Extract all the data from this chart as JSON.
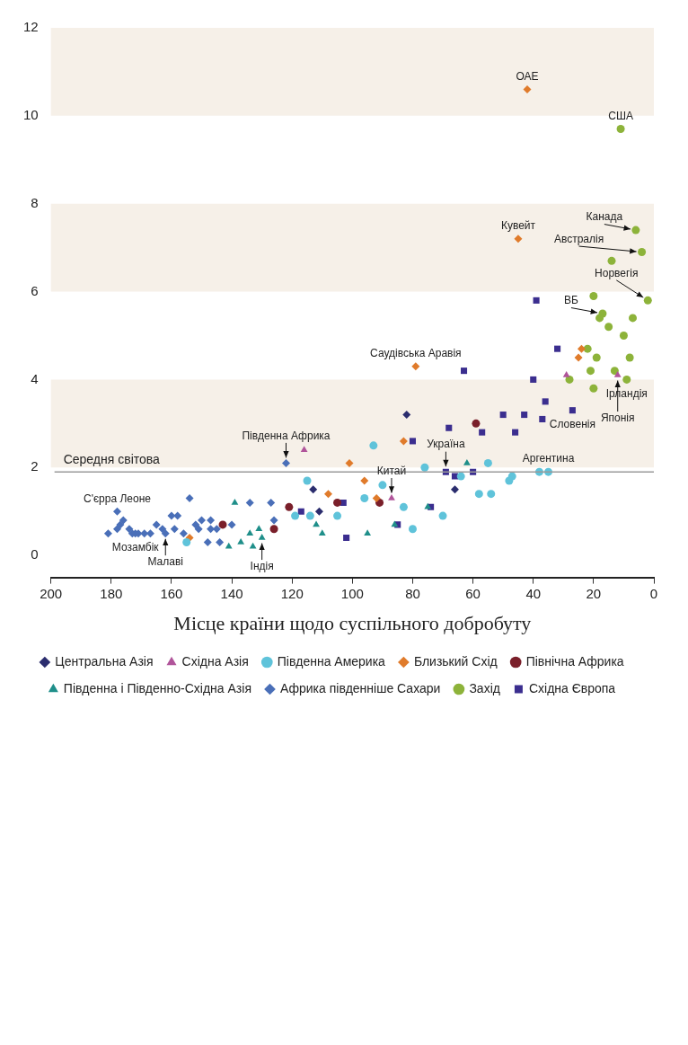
{
  "chart_data": {
    "type": "scatter",
    "xlabel": "Місце країни щодо суспільного добробуту",
    "xlim": [
      200,
      0
    ],
    "xticks": [
      0,
      20,
      40,
      60,
      80,
      100,
      120,
      140,
      160,
      180,
      200
    ],
    "ylim": [
      -0.5,
      12
    ],
    "yticks": [
      0,
      2,
      4,
      6,
      8,
      10,
      12
    ],
    "grid": false,
    "legend": "bottom",
    "series": [
      {
        "name": "Центральна Азія",
        "color": "#2b2d6e",
        "marker": "diamond",
        "x": [
          66,
          82,
          111,
          113
        ],
        "values": [
          1.5,
          3.2,
          1.0,
          1.5
        ]
      },
      {
        "name": "Східна Азія",
        "color": "#b0549a",
        "marker": "triangle",
        "x": [
          12,
          29,
          87,
          116
        ],
        "values": [
          4.1,
          4.1,
          1.3,
          2.4
        ]
      },
      {
        "name": "Південна Америка",
        "color": "#5fc3da",
        "marker": "circle",
        "x": [
          35,
          38,
          47,
          48,
          55,
          54,
          58,
          64,
          70,
          76,
          80,
          83,
          90,
          93,
          96,
          105,
          114,
          115,
          119,
          155
        ],
        "values": [
          1.9,
          1.9,
          1.8,
          1.7,
          2.1,
          1.4,
          1.4,
          1.8,
          0.9,
          2.0,
          0.6,
          1.1,
          1.6,
          2.5,
          1.3,
          0.9,
          0.9,
          1.7,
          0.9,
          0.3
        ]
      },
      {
        "name": "Близький Схід",
        "color": "#e07b2b",
        "marker": "diamond",
        "x": [
          42,
          45,
          24,
          25,
          79,
          83,
          92,
          96,
          101,
          108,
          154
        ],
        "values": [
          10.6,
          7.2,
          4.7,
          4.5,
          4.3,
          2.6,
          1.3,
          1.7,
          2.1,
          1.4,
          0.4
        ]
      },
      {
        "name": "Північна Африка",
        "color": "#7a1f2a",
        "marker": "circle",
        "x": [
          59,
          91,
          105,
          121,
          126,
          143
        ],
        "values": [
          3.0,
          1.2,
          1.2,
          1.1,
          0.6,
          0.7
        ]
      },
      {
        "name": "Південна і Південно-Східна Азія",
        "color": "#1f8f8a",
        "marker": "triangle",
        "x": [
          62,
          75,
          86,
          95,
          110,
          112,
          130,
          131,
          133,
          134,
          137,
          139,
          141
        ],
        "values": [
          2.1,
          1.1,
          0.7,
          0.5,
          0.5,
          0.7,
          0.4,
          0.6,
          0.2,
          0.5,
          0.3,
          1.2,
          0.2
        ]
      },
      {
        "name": "Африка південніше Сахари",
        "color": "#4a6fb8",
        "marker": "diamond",
        "x": [
          122,
          126,
          127,
          134,
          140,
          144,
          145,
          147,
          147,
          148,
          150,
          151,
          152,
          154,
          156,
          158,
          159,
          160,
          162,
          163,
          165,
          167,
          169,
          171,
          172,
          173,
          174,
          176,
          177,
          178,
          178,
          181
        ],
        "values": [
          2.1,
          0.8,
          1.2,
          1.2,
          0.7,
          0.3,
          0.6,
          0.8,
          0.6,
          0.3,
          0.8,
          0.6,
          0.7,
          1.3,
          0.5,
          0.9,
          0.6,
          0.9,
          0.5,
          0.6,
          0.7,
          0.5,
          0.5,
          0.5,
          0.5,
          0.5,
          0.6,
          0.8,
          0.7,
          0.6,
          1.0,
          0.5
        ]
      },
      {
        "name": "Захід",
        "color": "#8db33a",
        "marker": "circle",
        "x": [
          11,
          6,
          4,
          2,
          14,
          7,
          10,
          8,
          9,
          13,
          15,
          17,
          18,
          19,
          20,
          20,
          22,
          21,
          28
        ],
        "values": [
          9.7,
          7.4,
          6.9,
          5.8,
          6.7,
          5.4,
          5.0,
          4.5,
          4.0,
          4.2,
          5.2,
          5.5,
          5.4,
          4.5,
          3.8,
          5.9,
          4.7,
          4.2,
          4.0
        ]
      },
      {
        "name": "Східна Європа",
        "color": "#3b2e8f",
        "marker": "square",
        "x": [
          27,
          32,
          39,
          36,
          37,
          40,
          43,
          46,
          50,
          57,
          60,
          63,
          66,
          68,
          69,
          74,
          80,
          85,
          102,
          103,
          117
        ],
        "values": [
          3.3,
          4.7,
          5.8,
          3.5,
          3.1,
          4.0,
          3.2,
          2.8,
          3.2,
          2.8,
          1.9,
          4.2,
          1.8,
          2.9,
          1.9,
          1.1,
          2.6,
          0.7,
          0.4,
          1.2,
          1.0
        ]
      }
    ],
    "ref_lines": [
      {
        "axis": "y",
        "value": 1.9,
        "label": "Середня світова",
        "color": "#9a9a9a"
      }
    ],
    "bands": [
      {
        "axis": "y",
        "from": 10,
        "to": 12,
        "color": "#f6f0e8"
      },
      {
        "axis": "y",
        "from": 6,
        "to": 8,
        "color": "#f6f0e8"
      },
      {
        "axis": "y",
        "from": 2,
        "to": 4,
        "color": "#f6f0e8"
      }
    ],
    "annotations": [
      {
        "text": "США",
        "x": 11,
        "y": 9.7
      },
      {
        "text": "Канада",
        "x": 6,
        "y": 7.4
      },
      {
        "text": "Австралія",
        "x": 4,
        "y": 6.9
      },
      {
        "text": "Норвегія",
        "x": 2,
        "y": 5.8
      },
      {
        "text": "ВБ",
        "x": 17,
        "y": 5.5
      },
      {
        "text": "Ірландія",
        "x": 9,
        "y": 4.0
      },
      {
        "text": "Японія",
        "x": 12,
        "y": 4.1
      },
      {
        "text": "Словенія",
        "x": 27,
        "y": 3.3
      },
      {
        "text": "Аргентина",
        "x": 35,
        "y": 1.9
      },
      {
        "text": "ОАЕ",
        "x": 42,
        "y": 10.6
      },
      {
        "text": "Кувейт",
        "x": 45,
        "y": 7.2
      },
      {
        "text": "Україна",
        "x": 69,
        "y": 1.9
      },
      {
        "text": "Саудівська Аравія",
        "x": 79,
        "y": 4.3
      },
      {
        "text": "Китай",
        "x": 87,
        "y": 1.3
      },
      {
        "text": "Південна Африка",
        "x": 122,
        "y": 2.1
      },
      {
        "text": "Індія",
        "x": 130,
        "y": 0.4
      },
      {
        "text": "Малаві",
        "x": 162,
        "y": 0.5
      },
      {
        "text": "Мозамбік",
        "x": 172,
        "y": 0.5
      },
      {
        "text": "С'єрра Леоне",
        "x": 178,
        "y": 1.0
      }
    ]
  }
}
